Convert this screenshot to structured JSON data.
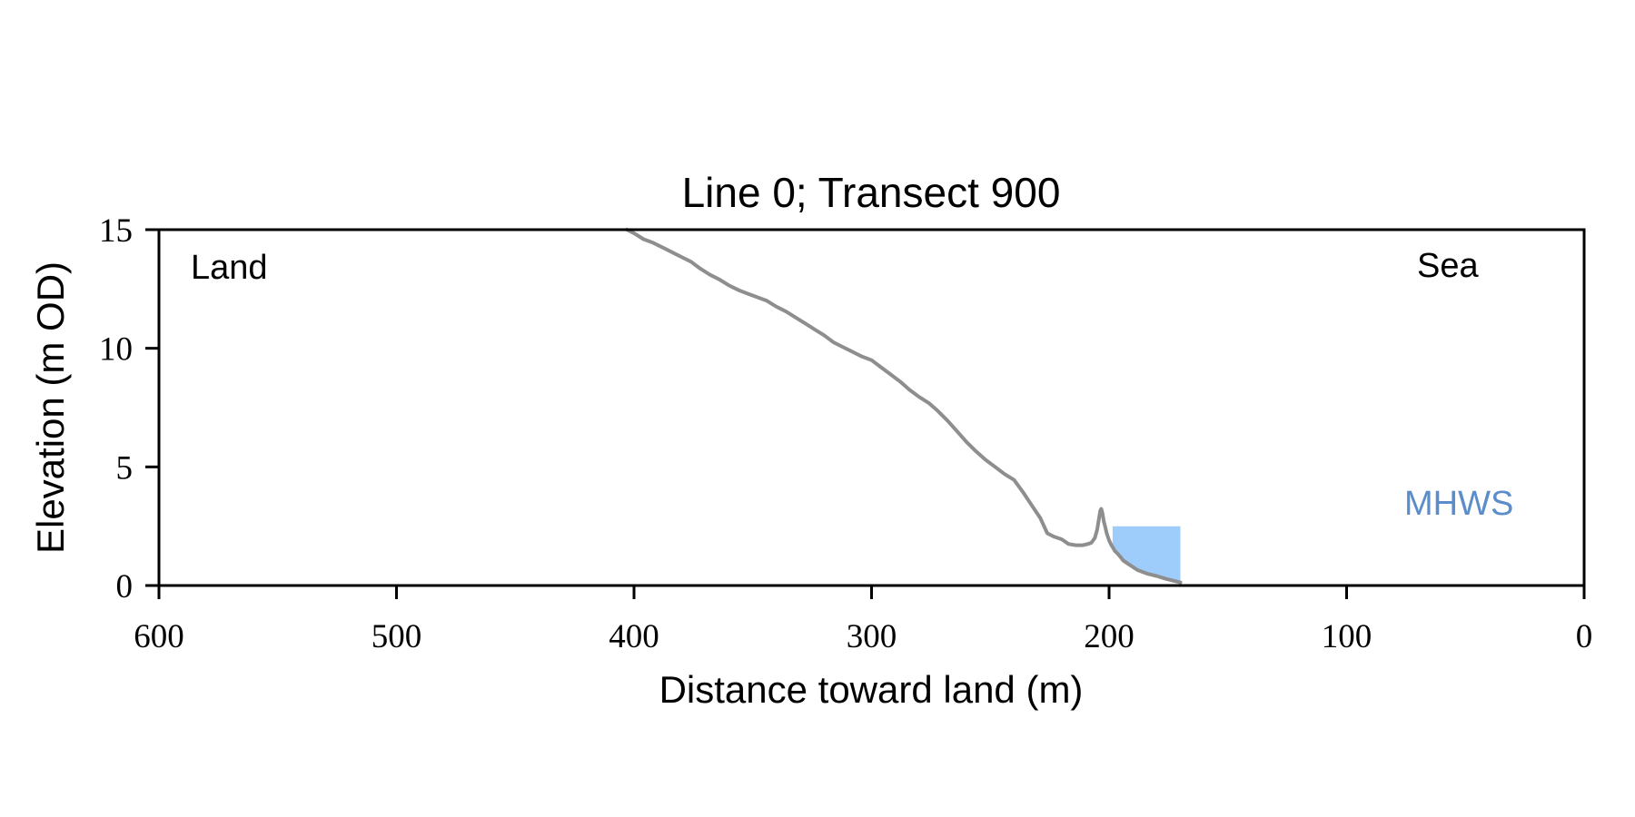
{
  "figure": {
    "background_color": "#ffffff",
    "spine_color": "#000000"
  },
  "chart_data": {
    "type": "line",
    "title": "Line 0; Transect 900",
    "xlabel": "Distance toward land (m)",
    "ylabel": "Elevation (m OD)",
    "xlim": [
      600,
      0
    ],
    "ylim": [
      0,
      15
    ],
    "x_axis_reversed": true,
    "grid": false,
    "legend": "none",
    "x_ticks": [
      600,
      500,
      400,
      300,
      200,
      100,
      0
    ],
    "y_ticks": [
      0,
      5,
      10,
      15
    ],
    "annotations": {
      "land": "Land",
      "sea": "Sea",
      "mhws": "MHWS"
    },
    "series": [
      {
        "name": "elevation_profile",
        "color": "#8e8e8e",
        "linewidth": 4,
        "points_distance_elevation": [
          [
            403,
            15.0
          ],
          [
            400,
            14.85
          ],
          [
            396,
            14.6
          ],
          [
            392,
            14.45
          ],
          [
            388,
            14.25
          ],
          [
            384,
            14.05
          ],
          [
            380,
            13.85
          ],
          [
            376,
            13.65
          ],
          [
            372,
            13.35
          ],
          [
            368,
            13.1
          ],
          [
            364,
            12.9
          ],
          [
            360,
            12.65
          ],
          [
            356,
            12.45
          ],
          [
            352,
            12.3
          ],
          [
            348,
            12.15
          ],
          [
            344,
            12.0
          ],
          [
            340,
            11.75
          ],
          [
            336,
            11.55
          ],
          [
            332,
            11.3
          ],
          [
            328,
            11.05
          ],
          [
            324,
            10.8
          ],
          [
            320,
            10.55
          ],
          [
            316,
            10.25
          ],
          [
            312,
            10.05
          ],
          [
            308,
            9.85
          ],
          [
            304,
            9.65
          ],
          [
            300,
            9.5
          ],
          [
            296,
            9.2
          ],
          [
            292,
            8.9
          ],
          [
            288,
            8.6
          ],
          [
            284,
            8.25
          ],
          [
            280,
            7.95
          ],
          [
            276,
            7.7
          ],
          [
            272,
            7.35
          ],
          [
            268,
            6.95
          ],
          [
            264,
            6.5
          ],
          [
            260,
            6.05
          ],
          [
            256,
            5.65
          ],
          [
            252,
            5.3
          ],
          [
            248,
            5.0
          ],
          [
            244,
            4.7
          ],
          [
            240,
            4.45
          ],
          [
            236,
            3.9
          ],
          [
            232,
            3.3
          ],
          [
            229,
            2.85
          ],
          [
            226,
            2.2
          ],
          [
            223,
            2.05
          ],
          [
            220,
            1.95
          ],
          [
            217,
            1.75
          ],
          [
            214,
            1.7
          ],
          [
            211,
            1.7
          ],
          [
            209,
            1.75
          ],
          [
            207.5,
            1.8
          ],
          [
            206,
            2.0
          ],
          [
            205,
            2.35
          ],
          [
            204.3,
            2.8
          ],
          [
            203.7,
            3.15
          ],
          [
            203.3,
            3.23
          ],
          [
            202.8,
            3.05
          ],
          [
            202.2,
            2.7
          ],
          [
            201.7,
            2.5
          ],
          [
            201,
            2.2
          ],
          [
            200,
            1.9
          ],
          [
            199,
            1.7
          ],
          [
            198.5,
            1.62
          ],
          [
            197.5,
            1.45
          ],
          [
            196.5,
            1.35
          ],
          [
            195,
            1.18
          ],
          [
            194,
            1.05
          ],
          [
            191,
            0.85
          ],
          [
            188,
            0.65
          ],
          [
            184,
            0.5
          ],
          [
            180,
            0.4
          ],
          [
            176,
            0.28
          ],
          [
            172,
            0.18
          ],
          [
            170,
            0.13
          ]
        ]
      }
    ],
    "water_fill": {
      "label": "MHWS",
      "level_m": 2.5,
      "from_distance_m": 198.5,
      "to_distance_m": 170,
      "fill_color": "#9fcdfb",
      "label_color": "#5b8dcb"
    }
  }
}
